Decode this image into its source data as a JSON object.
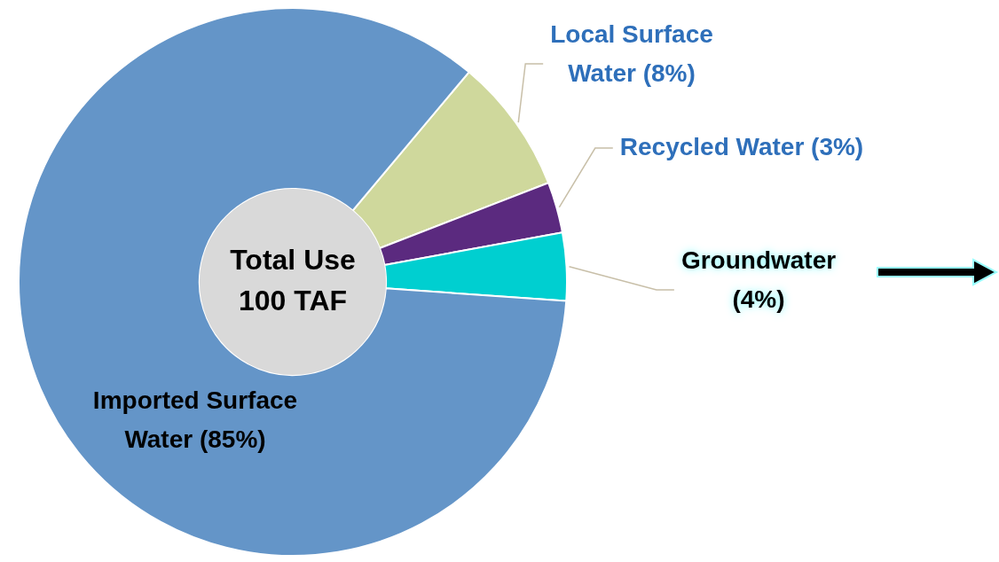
{
  "chart_data": {
    "type": "donut",
    "categories": [
      "Local Surface Water",
      "Recycled Water",
      "Groundwater",
      "Imported Surface Water"
    ],
    "values": [
      8,
      3,
      4,
      85
    ],
    "value_labels": [
      "(8%)",
      "(3%)",
      "(4%)",
      "(85%)"
    ],
    "colors": [
      "#cfd89c",
      "#5b2a7f",
      "#00cfd0",
      "#6495c8"
    ],
    "annotations": [
      "Total Use",
      "100 TAF"
    ],
    "legend": false
  }
}
